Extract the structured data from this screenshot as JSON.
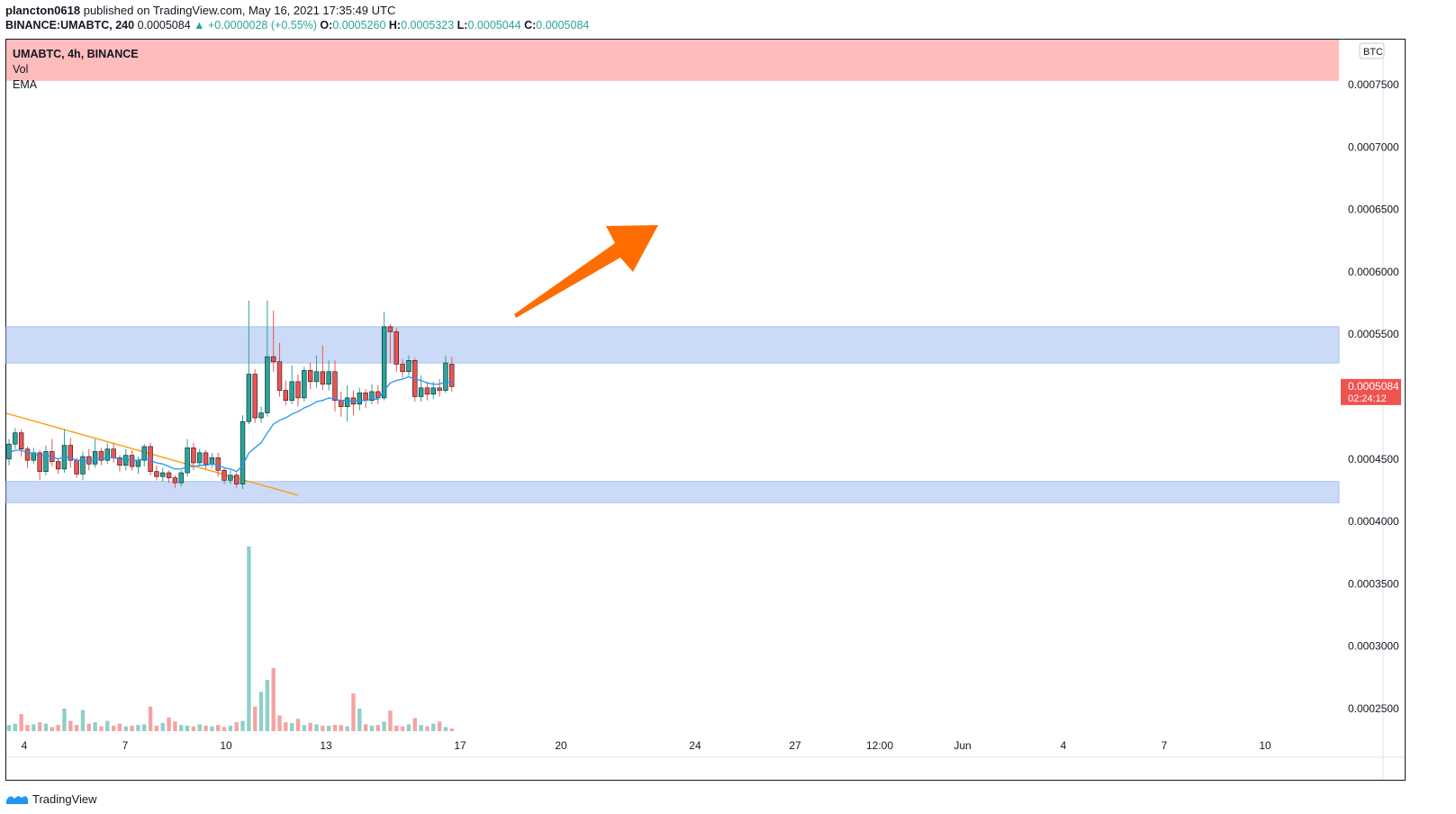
{
  "header": {
    "author": "plancton0618",
    "published": "published on TradingView.com, May 16, 2021 17:35:49 UTC",
    "symbol": "BINANCE:UMABTC, 240",
    "price": "0.0005084",
    "change": "+0.0000028 (+0.55%)",
    "o_label": "O:",
    "o": "0.0005260",
    "h_label": "H:",
    "h": "0.0005323",
    "l_label": "L:",
    "l": "0.0005044",
    "c_label": "C:",
    "c": "0.0005084"
  },
  "legend": {
    "title": "UMABTC, 4h, BINANCE",
    "vol": "Vol",
    "ema": "EMA"
  },
  "footer": {
    "brand": "TradingView"
  },
  "colors": {
    "up": "#26a69a",
    "down": "#ef5350",
    "ema": "#2196f3",
    "trendline": "#ff9800",
    "arrow": "#ff6d00",
    "red_zone": "#ffbcbc",
    "blue_zone": "#cbdaf6"
  },
  "chart_data": {
    "type": "candlestick",
    "currency_label": "BTC",
    "y_ticks": [
      "0.0007500",
      "0.0007000",
      "0.0006500",
      "0.0006000",
      "0.0005500",
      "0.0004500",
      "0.0004000",
      "0.0003500",
      "0.0003000",
      "0.0002500"
    ],
    "x_ticks": [
      "4",
      "7",
      "10",
      "13",
      "17",
      "20",
      "24",
      "27",
      "12:00",
      "Jun",
      "4",
      "7",
      "10"
    ],
    "last_price": "0.0005084",
    "countdown": "02:24:12",
    "zones": {
      "red": [
        0.000753,
        0.000785
      ],
      "blue_upper": [
        0.000527,
        0.000556
      ],
      "blue_lower": [
        0.000415,
        0.000432
      ]
    },
    "candles": [
      [
        0.00045,
        0.000462,
        0.000466,
        0.000445
      ],
      [
        0.000462,
        0.000471,
        0.000475,
        0.000458
      ],
      [
        0.000471,
        0.000458,
        0.000474,
        0.000452
      ],
      [
        0.000458,
        0.000449,
        0.00046,
        0.000443
      ],
      [
        0.000449,
        0.000455,
        0.000459,
        0.000446
      ],
      [
        0.000455,
        0.00044,
        0.000457,
        0.000433
      ],
      [
        0.00044,
        0.000456,
        0.000461,
        0.000437
      ],
      [
        0.000456,
        0.000448,
        0.000466,
        0.000444
      ],
      [
        0.000448,
        0.000442,
        0.000451,
        0.000438
      ],
      [
        0.000442,
        0.000461,
        0.000474,
        0.000439
      ],
      [
        0.000461,
        0.000449,
        0.000467,
        0.000443
      ],
      [
        0.000449,
        0.000438,
        0.000451,
        0.000435
      ],
      [
        0.000438,
        0.000452,
        0.000456,
        0.000433
      ],
      [
        0.000452,
        0.000446,
        0.000458,
        0.000441
      ],
      [
        0.000446,
        0.000456,
        0.000466,
        0.000443
      ],
      [
        0.000456,
        0.000449,
        0.000459,
        0.000445
      ],
      [
        0.000449,
        0.000458,
        0.000463,
        0.000446
      ],
      [
        0.000458,
        0.000451,
        0.000463,
        0.000447
      ],
      [
        0.000451,
        0.000445,
        0.000453,
        0.00044
      ],
      [
        0.000445,
        0.000453,
        0.000458,
        0.000441
      ],
      [
        0.000453,
        0.000444,
        0.000457,
        0.000441
      ],
      [
        0.000444,
        0.000449,
        0.000452,
        0.000438
      ],
      [
        0.000449,
        0.00046,
        0.000462,
        0.000444
      ],
      [
        0.00046,
        0.00044,
        0.000463,
        0.000437
      ],
      [
        0.00044,
        0.000436,
        0.000445,
        0.000433
      ],
      [
        0.000436,
        0.000439,
        0.000443,
        0.000432
      ],
      [
        0.000439,
        0.000435,
        0.000441,
        0.000431
      ],
      [
        0.000435,
        0.000431,
        0.000437,
        0.000427
      ],
      [
        0.000431,
        0.000439,
        0.000441,
        0.000428
      ],
      [
        0.000439,
        0.000459,
        0.000466,
        0.000436
      ],
      [
        0.000459,
        0.000447,
        0.000463,
        0.000441
      ],
      [
        0.000447,
        0.000455,
        0.000458,
        0.000444
      ],
      [
        0.000455,
        0.000446,
        0.000457,
        0.000442
      ],
      [
        0.000446,
        0.000451,
        0.000455,
        0.000443
      ],
      [
        0.000451,
        0.000441,
        0.000455,
        0.000436
      ],
      [
        0.000441,
        0.000433,
        0.000443,
        0.00043
      ],
      [
        0.000433,
        0.000437,
        0.000441,
        0.00043
      ],
      [
        0.000437,
        0.00043,
        0.000439,
        0.000427
      ],
      [
        0.00043,
        0.00048,
        0.000485,
        0.000426
      ],
      [
        0.00048,
        0.000518,
        0.000577,
        0.000478
      ],
      [
        0.000518,
        0.000483,
        0.000522,
        0.000479
      ],
      [
        0.000483,
        0.000487,
        0.000492,
        0.000479
      ],
      [
        0.000487,
        0.000532,
        0.000577,
        0.000484
      ],
      [
        0.000532,
        0.000528,
        0.000569,
        0.00052
      ],
      [
        0.000528,
        0.000505,
        0.000543,
        0.0005
      ],
      [
        0.000505,
        0.000497,
        0.000513,
        0.000493
      ],
      [
        0.000497,
        0.000512,
        0.000525,
        0.000494
      ],
      [
        0.000512,
        0.000499,
        0.000518,
        0.000492
      ],
      [
        0.000499,
        0.000521,
        0.000524,
        0.000496
      ],
      [
        0.000521,
        0.000512,
        0.000527,
        0.000506
      ],
      [
        0.000512,
        0.00052,
        0.000533,
        0.000507
      ],
      [
        0.00052,
        0.00051,
        0.000541,
        0.000505
      ],
      [
        0.00051,
        0.00052,
        0.000529,
        0.000505
      ],
      [
        0.00052,
        0.000497,
        0.000529,
        0.000488
      ],
      [
        0.000497,
        0.000492,
        0.000504,
        0.000484
      ],
      [
        0.000492,
        0.000499,
        0.000509,
        0.00048
      ],
      [
        0.000499,
        0.000494,
        0.000505,
        0.000485
      ],
      [
        0.000494,
        0.000503,
        0.000507,
        0.000489
      ],
      [
        0.000503,
        0.000497,
        0.000506,
        0.000491
      ],
      [
        0.000497,
        0.000504,
        0.00051,
        0.000494
      ],
      [
        0.000504,
        0.000499,
        0.000509,
        0.000494
      ],
      [
        0.000499,
        0.000556,
        0.000568,
        0.000497
      ],
      [
        0.000556,
        0.000552,
        0.000558,
        0.000527
      ],
      [
        0.000552,
        0.000526,
        0.000555,
        0.00052
      ],
      [
        0.000526,
        0.00052,
        0.00053,
        0.000515
      ],
      [
        0.00052,
        0.000529,
        0.000533,
        0.000517
      ],
      [
        0.000529,
        0.0005,
        0.000531,
        0.000496
      ],
      [
        0.0005,
        0.000507,
        0.000517,
        0.000496
      ],
      [
        0.000507,
        0.000502,
        0.000512,
        0.000497
      ],
      [
        0.000502,
        0.000507,
        0.000512,
        0.000498
      ],
      [
        0.000507,
        0.000505,
        0.000514,
        0.0005
      ],
      [
        0.000505,
        0.000527,
        0.000533,
        0.000503
      ],
      [
        0.000526,
        0.000508,
        0.000532,
        0.000504
      ]
    ],
    "ema": [
      0.000455,
      0.000457,
      0.000457,
      0.000455,
      0.000455,
      0.000452,
      0.000453,
      0.000452,
      0.00045,
      0.000452,
      0.000451,
      0.000449,
      0.000449,
      0.000448,
      0.00045,
      0.00045,
      0.000451,
      0.000451,
      0.00045,
      0.00045,
      0.000449,
      0.000449,
      0.000451,
      0.000449,
      0.000447,
      0.000446,
      0.000444,
      0.000442,
      0.000442,
      0.000444,
      0.000444,
      0.000445,
      0.000445,
      0.000446,
      0.000445,
      0.000443,
      0.000442,
      0.00044,
      0.000445,
      0.000455,
      0.000459,
      0.000463,
      0.000471,
      0.000478,
      0.000481,
      0.000483,
      0.000486,
      0.000488,
      0.000491,
      0.000493,
      0.000496,
      0.000497,
      0.000499,
      0.000498,
      0.000497,
      0.000497,
      0.000496,
      0.000497,
      0.000497,
      0.000498,
      0.000498,
      0.000505,
      0.000511,
      0.000513,
      0.000514,
      0.000516,
      0.000514,
      0.000513,
      0.000511,
      0.00051,
      0.00051,
      0.000512,
      0.000511
    ],
    "volume": [
      0.18,
      0.22,
      0.5,
      0.18,
      0.2,
      0.26,
      0.22,
      0.12,
      0.18,
      0.66,
      0.3,
      0.18,
      0.62,
      0.22,
      0.26,
      0.14,
      0.3,
      0.16,
      0.22,
      0.14,
      0.16,
      0.18,
      0.2,
      0.72,
      0.16,
      0.24,
      0.4,
      0.28,
      0.18,
      0.16,
      0.14,
      0.2,
      0.16,
      0.14,
      0.18,
      0.12,
      0.16,
      0.26,
      0.3,
      5.4,
      0.72,
      1.15,
      1.5,
      1.85,
      0.46,
      0.26,
      0.24,
      0.36,
      0.18,
      0.24,
      0.2,
      0.16,
      0.16,
      0.18,
      0.18,
      0.14,
      1.1,
      0.66,
      0.2,
      0.16,
      0.18,
      0.28,
      0.6,
      0.16,
      0.14,
      0.2,
      0.38,
      0.18,
      0.14,
      0.22,
      0.28,
      0.12,
      0.08
    ]
  }
}
